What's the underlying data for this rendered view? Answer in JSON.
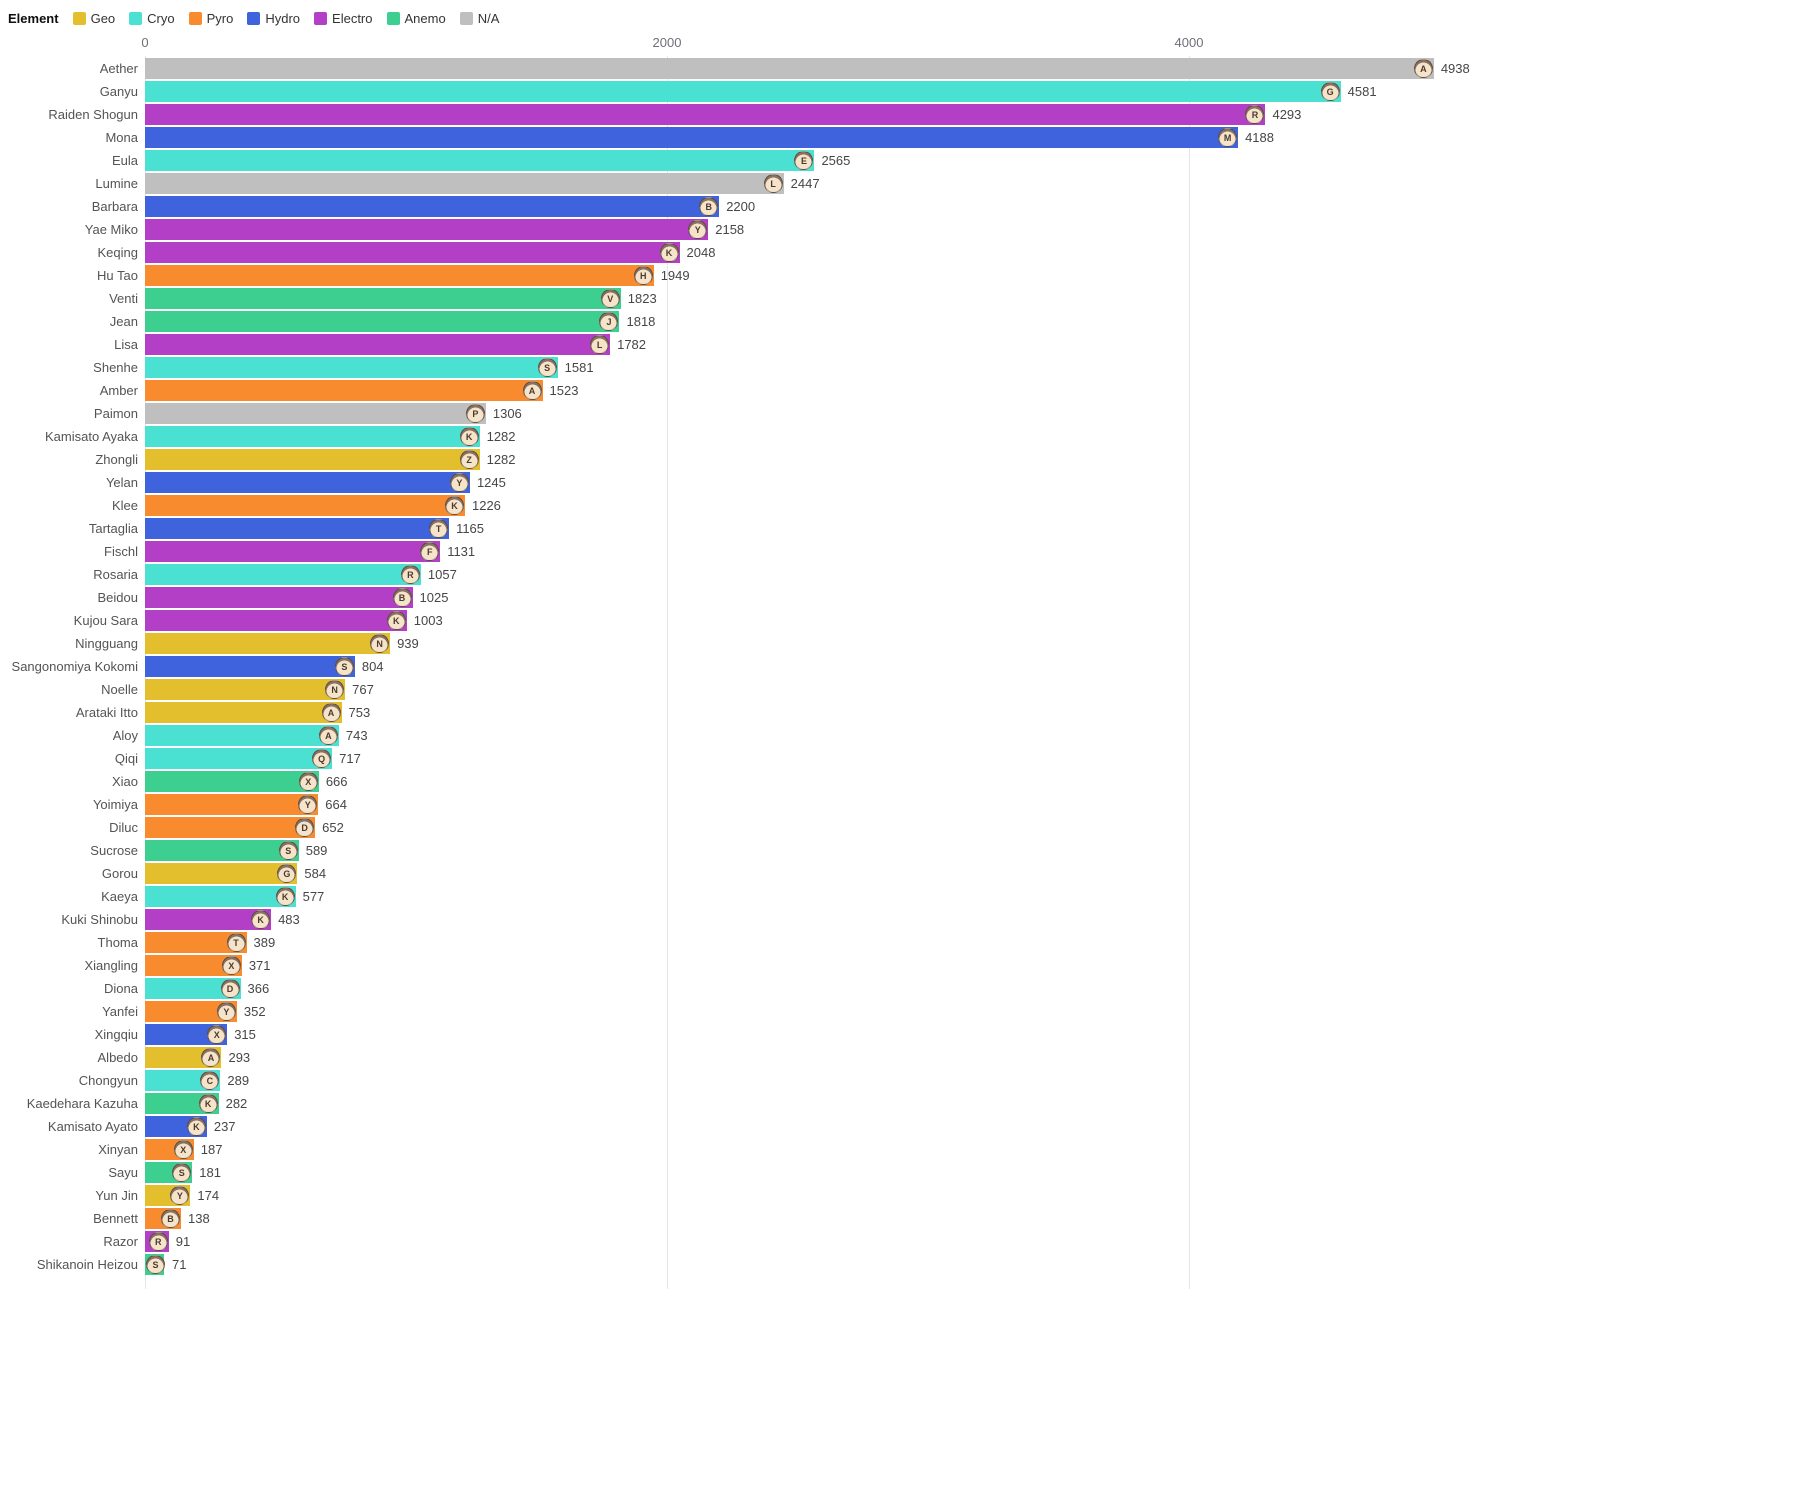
{
  "legend": {
    "title": "Element",
    "items": [
      {
        "label": "Geo",
        "color": "#e4bf2d"
      },
      {
        "label": "Cryo",
        "color": "#4be1d2"
      },
      {
        "label": "Pyro",
        "color": "#f78b2e"
      },
      {
        "label": "Hydro",
        "color": "#3e63dc"
      },
      {
        "label": "Electro",
        "color": "#b23fc6"
      },
      {
        "label": "Anemo",
        "color": "#3ccf8f"
      },
      {
        "label": "N/A",
        "color": "#bfbfbf"
      }
    ]
  },
  "element_colors": {
    "Geo": "#e4bf2d",
    "Cryo": "#4be1d2",
    "Pyro": "#f78b2e",
    "Hydro": "#3e63dc",
    "Electro": "#b23fc6",
    "Anemo": "#3ccf8f",
    "N/A": "#bfbfbf"
  },
  "chart_data": {
    "type": "bar",
    "orientation": "horizontal",
    "title": "",
    "xlabel": "",
    "ylabel": "",
    "legend_title": "Element",
    "legend_position": "top-left",
    "grid": true,
    "xlim": [
      0,
      5200
    ],
    "x_ticks": [
      0,
      2000,
      4000
    ],
    "categories": [
      "Aether",
      "Ganyu",
      "Raiden Shogun",
      "Mona",
      "Eula",
      "Lumine",
      "Barbara",
      "Yae Miko",
      "Keqing",
      "Hu Tao",
      "Venti",
      "Jean",
      "Lisa",
      "Shenhe",
      "Amber",
      "Paimon",
      "Kamisato Ayaka",
      "Zhongli",
      "Yelan",
      "Klee",
      "Tartaglia",
      "Fischl",
      "Rosaria",
      "Beidou",
      "Kujou Sara",
      "Ningguang",
      "Sangonomiya Kokomi",
      "Noelle",
      "Arataki Itto",
      "Aloy",
      "Qiqi",
      "Xiao",
      "Yoimiya",
      "Diluc",
      "Sucrose",
      "Gorou",
      "Kaeya",
      "Kuki Shinobu",
      "Thoma",
      "Xiangling",
      "Diona",
      "Yanfei",
      "Xingqiu",
      "Albedo",
      "Chongyun",
      "Kaedehara Kazuha",
      "Kamisato Ayato",
      "Xinyan",
      "Sayu",
      "Yun Jin",
      "Bennett",
      "Razor",
      "Shikanoin Heizou"
    ],
    "values": [
      4938,
      4581,
      4293,
      4188,
      2565,
      2447,
      2200,
      2158,
      2048,
      1949,
      1823,
      1818,
      1782,
      1581,
      1523,
      1306,
      1282,
      1282,
      1245,
      1226,
      1165,
      1131,
      1057,
      1025,
      1003,
      939,
      804,
      767,
      753,
      743,
      717,
      666,
      664,
      652,
      589,
      584,
      577,
      483,
      389,
      371,
      366,
      352,
      315,
      293,
      289,
      282,
      237,
      187,
      181,
      174,
      138,
      91,
      71
    ],
    "elements": [
      "N/A",
      "Cryo",
      "Electro",
      "Hydro",
      "Cryo",
      "N/A",
      "Hydro",
      "Electro",
      "Electro",
      "Pyro",
      "Anemo",
      "Anemo",
      "Electro",
      "Cryo",
      "Pyro",
      "N/A",
      "Cryo",
      "Geo",
      "Hydro",
      "Pyro",
      "Hydro",
      "Electro",
      "Cryo",
      "Electro",
      "Electro",
      "Geo",
      "Hydro",
      "Geo",
      "Geo",
      "Cryo",
      "Cryo",
      "Anemo",
      "Pyro",
      "Pyro",
      "Anemo",
      "Geo",
      "Cryo",
      "Electro",
      "Pyro",
      "Pyro",
      "Cryo",
      "Pyro",
      "Hydro",
      "Geo",
      "Cryo",
      "Anemo",
      "Hydro",
      "Pyro",
      "Anemo",
      "Geo",
      "Pyro",
      "Electro",
      "Anemo"
    ]
  }
}
